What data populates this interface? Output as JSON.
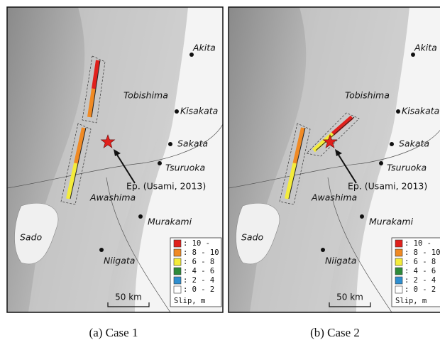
{
  "panels": [
    {
      "caption": "(a)  Case 1",
      "places": [
        "Akita",
        "Tobishima",
        "Kisakata",
        "Sakata",
        "Tsuruoka",
        "Awashima",
        "Murakami",
        "Sado",
        "Niigata"
      ],
      "epicenter_label": "Ep. (Usami, 2013)",
      "scale_label": "50 km",
      "legend": {
        "title": "Slip, m",
        "items": [
          {
            "label": ": 10 -",
            "color": "#e0201c"
          },
          {
            "label": ": 8 - 10",
            "color": "#f08a24"
          },
          {
            "label": ": 6 - 8",
            "color": "#f4ec3a"
          },
          {
            "label": ": 4 - 6",
            "color": "#2e8b3a"
          },
          {
            "label": ": 2 - 4",
            "color": "#2f8fd0"
          },
          {
            "label": ": 0 - 2",
            "color": "#ffffff"
          }
        ]
      }
    },
    {
      "caption": "(b)  Case 2",
      "places": [
        "Akita",
        "Tobishima",
        "Kisakata",
        "Sakata",
        "Tsuruoka",
        "Awashima",
        "Murakami",
        "Sado",
        "Niigata"
      ],
      "epicenter_label": "Ep. (Usami, 2013)",
      "scale_label": "50 km",
      "legend": {
        "title": "Slip, m",
        "items": [
          {
            "label": ": 10 -",
            "color": "#e0201c"
          },
          {
            "label": ": 8 - 10",
            "color": "#f08a24"
          },
          {
            "label": ": 6 - 8",
            "color": "#f4ec3a"
          },
          {
            "label": ": 4 - 6",
            "color": "#2e8b3a"
          },
          {
            "label": ": 2 - 4",
            "color": "#2f8fd0"
          },
          {
            "label": ": 0 - 2",
            "color": "#ffffff"
          }
        ]
      }
    }
  ]
}
